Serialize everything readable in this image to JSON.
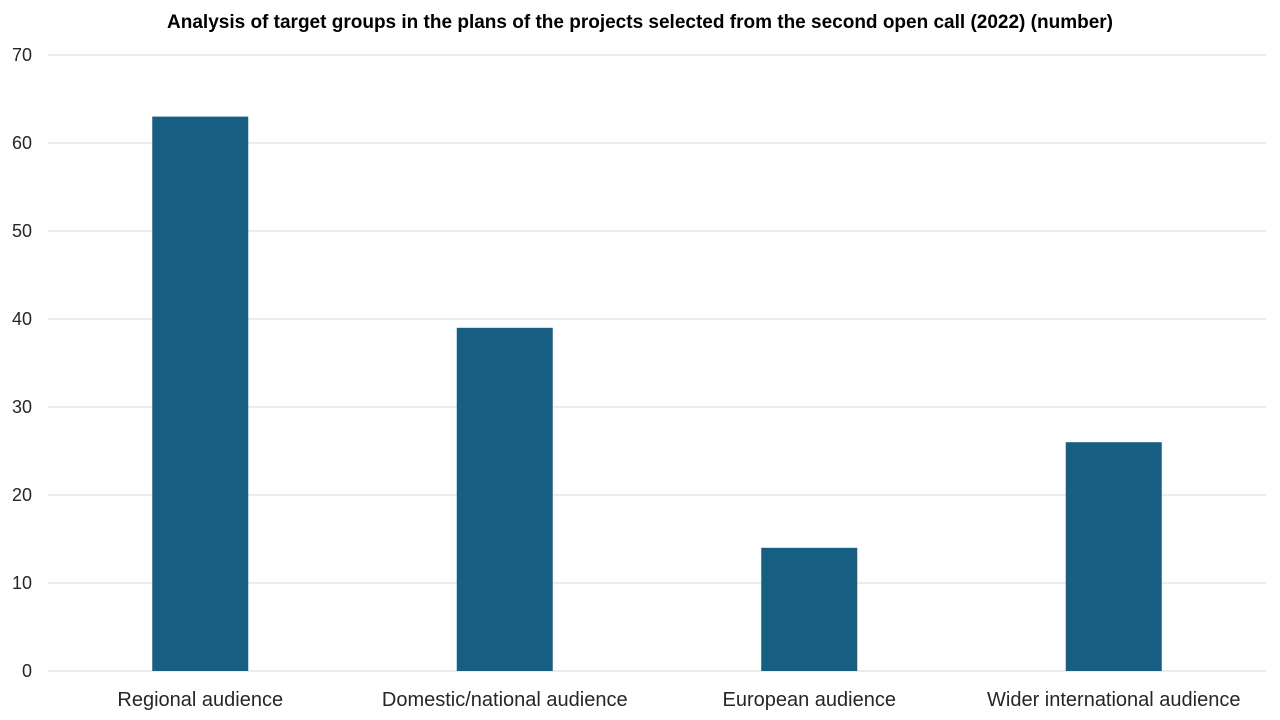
{
  "chart_data": {
    "type": "bar",
    "title": "Analysis of target groups in the plans of the projects selected from the second open call (2022) (number)",
    "xlabel": "",
    "ylabel": "",
    "categories": [
      "Regional audience",
      "Domestic/national audience",
      "European audience",
      "Wider international audience"
    ],
    "values": [
      63,
      39,
      14,
      26
    ],
    "ylim": [
      0,
      70
    ],
    "yticks": [
      0,
      10,
      20,
      30,
      40,
      50,
      60,
      70
    ],
    "grid": true,
    "legend": "none",
    "bar_color": "#175f82",
    "grid_color": "#d9d9d9"
  }
}
